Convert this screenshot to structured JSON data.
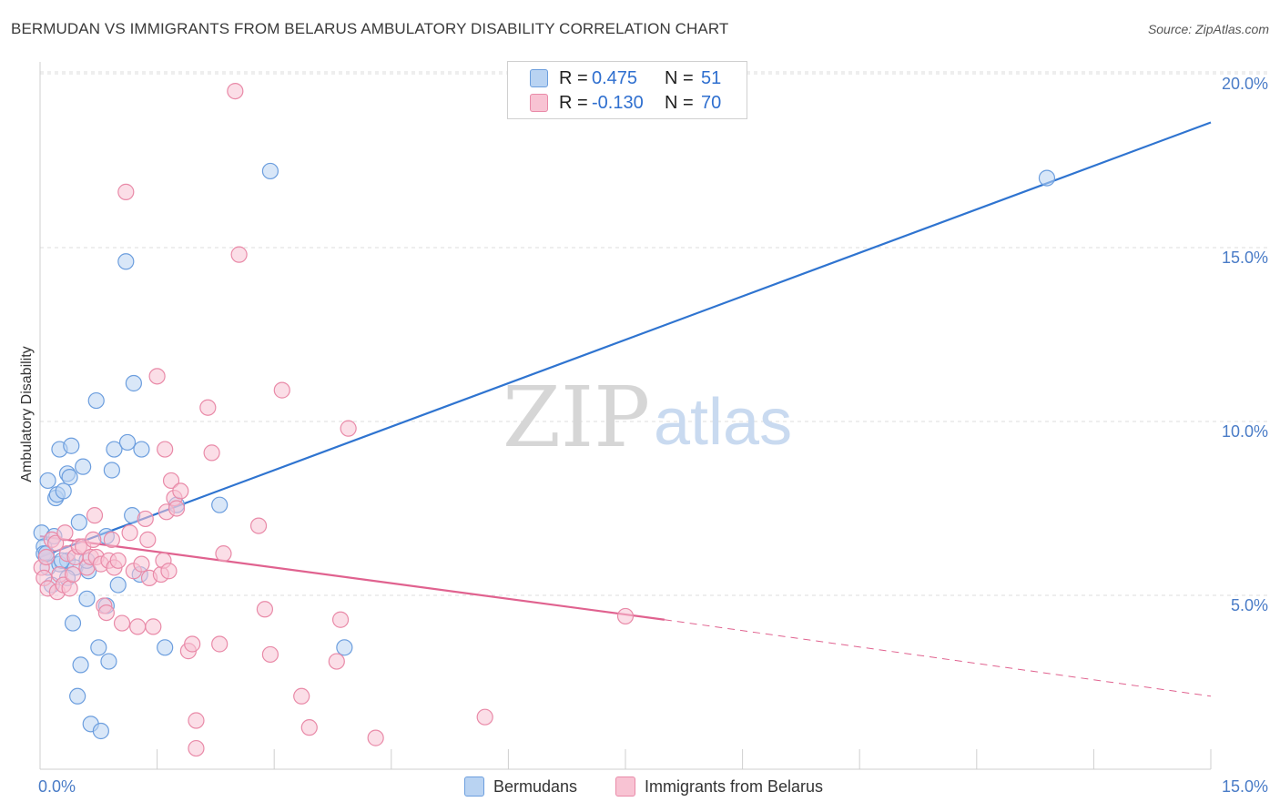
{
  "title": "BERMUDAN VS IMMIGRANTS FROM BELARUS AMBULATORY DISABILITY CORRELATION CHART",
  "source": "Source: ZipAtlas.com",
  "watermark": {
    "zip": "ZIP",
    "atlas": "atlas"
  },
  "legend": {
    "rows": [
      {
        "r_label": "R =",
        "r_value": "0.475",
        "n_label": "N =",
        "n_value": "51"
      },
      {
        "r_label": "R =",
        "r_value": "-0.130",
        "n_label": "N =",
        "n_value": "70"
      }
    ]
  },
  "colors": {
    "blue_fill": "#b9d3f2",
    "blue_stroke": "#6c9ede",
    "blue_line": "#2f74d0",
    "pink_fill": "#f8c3d3",
    "pink_stroke": "#e98aa8",
    "pink_line": "#e0628f",
    "grid": "#dddddd",
    "tick_text": "#4a7cc7"
  },
  "chart_data": {
    "type": "scatter",
    "title": "BERMUDAN VS IMMIGRANTS FROM BELARUS AMBULATORY DISABILITY CORRELATION CHART",
    "xlabel": "",
    "ylabel": "Ambulatory Disability",
    "xlim": [
      0,
      15
    ],
    "ylim": [
      0,
      21
    ],
    "x_tick_labels": [
      {
        "value": 0,
        "label": "0.0%"
      },
      {
        "value": 15,
        "label": "15.0%"
      }
    ],
    "y_tick_labels": [
      {
        "value": 5,
        "label": "5.0%"
      },
      {
        "value": 10,
        "label": "10.0%"
      },
      {
        "value": 15,
        "label": "15.0%"
      },
      {
        "value": 20,
        "label": "20.0%"
      }
    ],
    "series": [
      {
        "name": "Bermudans",
        "color": "blue",
        "points": [
          [
            0.02,
            6.8
          ],
          [
            0.05,
            6.4
          ],
          [
            0.05,
            6.2
          ],
          [
            0.08,
            6.1
          ],
          [
            0.1,
            5.8
          ],
          [
            0.1,
            8.3
          ],
          [
            0.15,
            5.3
          ],
          [
            0.2,
            7.8
          ],
          [
            0.22,
            7.9
          ],
          [
            0.25,
            9.2
          ],
          [
            0.25,
            5.9
          ],
          [
            0.3,
            8.0
          ],
          [
            0.35,
            6.0
          ],
          [
            0.35,
            8.5
          ],
          [
            0.38,
            8.4
          ],
          [
            0.4,
            9.3
          ],
          [
            0.42,
            4.2
          ],
          [
            0.45,
            5.8
          ],
          [
            0.48,
            2.1
          ],
          [
            0.5,
            7.1
          ],
          [
            0.52,
            3.0
          ],
          [
            0.55,
            8.7
          ],
          [
            0.6,
            4.9
          ],
          [
            0.62,
            5.7
          ],
          [
            0.65,
            1.3
          ],
          [
            0.72,
            10.6
          ],
          [
            0.75,
            3.5
          ],
          [
            0.78,
            1.1
          ],
          [
            0.85,
            4.7
          ],
          [
            0.88,
            3.1
          ],
          [
            0.92,
            8.6
          ],
          [
            0.95,
            9.2
          ],
          [
            1.0,
            5.3
          ],
          [
            1.1,
            14.6
          ],
          [
            1.12,
            9.4
          ],
          [
            1.18,
            7.3
          ],
          [
            1.2,
            11.1
          ],
          [
            1.28,
            5.6
          ],
          [
            1.3,
            9.2
          ],
          [
            1.6,
            3.5
          ],
          [
            1.75,
            7.6
          ],
          [
            2.3,
            7.6
          ],
          [
            2.95,
            17.2
          ],
          [
            3.9,
            3.5
          ],
          [
            12.9,
            17.0
          ],
          [
            0.08,
            6.2
          ],
          [
            0.18,
            6.7
          ],
          [
            0.28,
            6.0
          ],
          [
            0.35,
            5.5
          ],
          [
            0.6,
            6.0
          ],
          [
            0.85,
            6.7
          ]
        ]
      },
      {
        "name": "Immigrants from Belarus",
        "color": "pink",
        "points": [
          [
            0.02,
            5.8
          ],
          [
            0.05,
            5.5
          ],
          [
            0.08,
            6.1
          ],
          [
            0.1,
            5.2
          ],
          [
            0.15,
            6.6
          ],
          [
            0.2,
            6.5
          ],
          [
            0.22,
            5.1
          ],
          [
            0.25,
            5.6
          ],
          [
            0.3,
            5.3
          ],
          [
            0.32,
            6.8
          ],
          [
            0.35,
            6.2
          ],
          [
            0.38,
            5.2
          ],
          [
            0.42,
            5.6
          ],
          [
            0.45,
            6.1
          ],
          [
            0.5,
            6.4
          ],
          [
            0.55,
            6.4
          ],
          [
            0.6,
            5.8
          ],
          [
            0.65,
            6.1
          ],
          [
            0.68,
            6.6
          ],
          [
            0.7,
            7.3
          ],
          [
            0.72,
            6.1
          ],
          [
            0.78,
            5.9
          ],
          [
            0.82,
            4.7
          ],
          [
            0.85,
            4.5
          ],
          [
            0.88,
            6.0
          ],
          [
            0.92,
            6.6
          ],
          [
            0.95,
            5.8
          ],
          [
            1.0,
            6.0
          ],
          [
            1.05,
            4.2
          ],
          [
            1.1,
            16.6
          ],
          [
            1.15,
            6.8
          ],
          [
            1.2,
            5.7
          ],
          [
            1.25,
            4.1
          ],
          [
            1.3,
            5.9
          ],
          [
            1.35,
            7.2
          ],
          [
            1.38,
            6.6
          ],
          [
            1.4,
            5.5
          ],
          [
            1.45,
            4.1
          ],
          [
            1.5,
            11.3
          ],
          [
            1.55,
            5.6
          ],
          [
            1.58,
            6.0
          ],
          [
            1.6,
            9.2
          ],
          [
            1.62,
            7.4
          ],
          [
            1.65,
            5.7
          ],
          [
            1.68,
            8.3
          ],
          [
            1.72,
            7.8
          ],
          [
            1.75,
            7.5
          ],
          [
            1.8,
            8.0
          ],
          [
            1.9,
            3.4
          ],
          [
            1.95,
            3.6
          ],
          [
            2.0,
            1.4
          ],
          [
            2.0,
            0.6
          ],
          [
            2.15,
            10.4
          ],
          [
            2.2,
            9.1
          ],
          [
            2.3,
            3.6
          ],
          [
            2.35,
            6.2
          ],
          [
            2.5,
            19.5
          ],
          [
            2.55,
            14.8
          ],
          [
            2.8,
            7.0
          ],
          [
            2.88,
            4.6
          ],
          [
            2.95,
            3.3
          ],
          [
            3.1,
            10.9
          ],
          [
            3.35,
            2.1
          ],
          [
            3.45,
            1.2
          ],
          [
            3.8,
            3.1
          ],
          [
            3.85,
            4.3
          ],
          [
            3.95,
            9.8
          ],
          [
            4.3,
            0.9
          ],
          [
            5.7,
            1.5
          ],
          [
            7.5,
            4.4
          ]
        ]
      }
    ],
    "trendlines": [
      {
        "series": "Bermudans",
        "x_start": 0.0,
        "y_start": 6.1,
        "x_end": 15.0,
        "y_end": 18.6,
        "style": "solid"
      },
      {
        "series": "Immigrants from Belarus",
        "x_start": 0.0,
        "y_start": 6.7,
        "x_end": 8.0,
        "y_end": 4.3,
        "style": "solid"
      },
      {
        "series": "Immigrants from Belarus",
        "x_start": 8.0,
        "y_start": 4.3,
        "x_end": 15.0,
        "y_end": 2.1,
        "style": "dashed"
      }
    ],
    "legend_position": "top-center",
    "bottom_legend": [
      "Bermudans",
      "Immigrants from Belarus"
    ]
  }
}
